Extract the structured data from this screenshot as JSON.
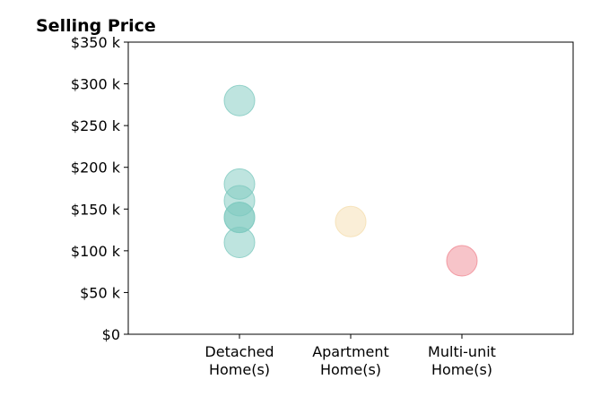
{
  "chart_data": {
    "type": "scatter",
    "title": "Selling Price",
    "xlabel": "",
    "ylabel": "",
    "categories": [
      [
        "Detached",
        "Home(s)"
      ],
      [
        "Apartment",
        "Home(s)"
      ],
      [
        "Multi-unit",
        "Home(s)"
      ]
    ],
    "xlim": [
      0,
      4
    ],
    "ylim": [
      0,
      350000
    ],
    "y_ticks": [
      0,
      50000,
      100000,
      150000,
      200000,
      250000,
      300000,
      350000
    ],
    "y_tick_labels": [
      "$0",
      "$50 k",
      "$100 k",
      "$150 k",
      "$200 k",
      "$250 k",
      "$300 k",
      "$350 k"
    ],
    "grid": false,
    "series": [
      {
        "color": "#7ec9bf",
        "points": [
          [
            1,
            280000
          ],
          [
            1,
            180000
          ],
          [
            1,
            160000
          ],
          [
            1,
            140000
          ],
          [
            1,
            140000
          ],
          [
            1,
            110000
          ]
        ]
      },
      {
        "color": "#f5deb0",
        "points": [
          [
            2,
            135000
          ]
        ]
      },
      {
        "color": "#f08a93",
        "points": [
          [
            3,
            88000
          ]
        ]
      }
    ],
    "marker_opacity": 0.5
  }
}
